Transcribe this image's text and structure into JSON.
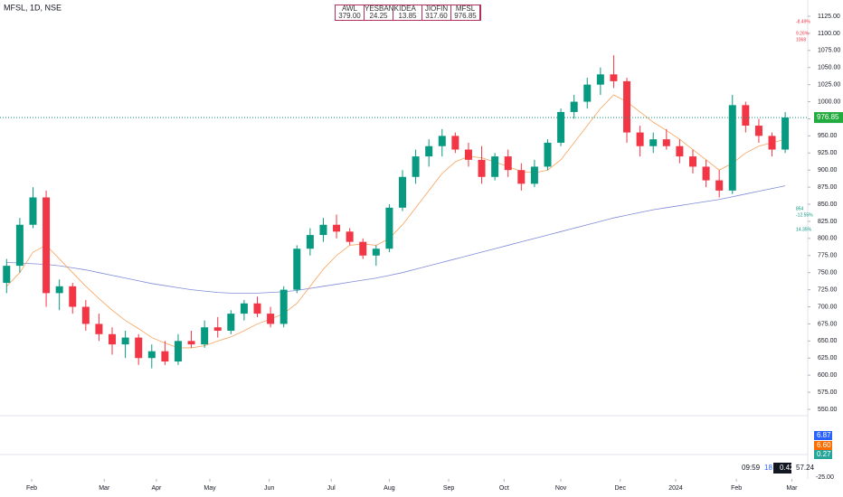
{
  "chart_data": {
    "type": "candlestick",
    "title": "MFSL, 1D, NSE",
    "watchlist": {
      "symbols": [
        "AWL",
        "YESBANK",
        "IDEA",
        "JIOFIN",
        "MFSL"
      ],
      "prices": [
        "379.00",
        "24.25",
        "13.85",
        "317.60",
        "976.85"
      ]
    },
    "x": [
      0.5,
      1.5,
      2.5,
      3.5,
      4.5,
      5.5,
      6.5,
      7.5,
      8.5,
      9.5,
      10.5,
      11.5,
      12.5,
      13.5,
      14.5,
      15.5,
      16.5,
      17.5,
      18.5,
      19.5,
      20.5,
      21.5,
      22.5,
      23.5,
      24.5,
      25.5,
      26.5,
      27.5,
      28.5,
      29.5,
      30.5,
      31.5,
      32.5,
      33.5,
      34.5,
      35.5,
      36.5,
      37.5,
      38.5,
      39.5,
      40.5,
      41.5,
      42.5,
      43.5,
      44.5,
      45.5,
      46.5,
      47.5,
      48.5,
      49.5,
      50.5,
      51.5,
      52.5,
      53.5,
      54.5,
      55.5,
      56.5,
      57.5,
      58.5,
      59.5
    ],
    "ohlc": [
      [
        735,
        770,
        720,
        760
      ],
      [
        760,
        830,
        750,
        820
      ],
      [
        820,
        875,
        815,
        860
      ],
      [
        860,
        870,
        700,
        720
      ],
      [
        720,
        740,
        695,
        730
      ],
      [
        730,
        735,
        690,
        700
      ],
      [
        700,
        710,
        665,
        675
      ],
      [
        675,
        690,
        650,
        660
      ],
      [
        660,
        670,
        630,
        645
      ],
      [
        645,
        665,
        625,
        655
      ],
      [
        655,
        660,
        615,
        625
      ],
      [
        625,
        645,
        610,
        635
      ],
      [
        635,
        650,
        615,
        620
      ],
      [
        620,
        660,
        615,
        650
      ],
      [
        650,
        665,
        640,
        645
      ],
      [
        645,
        680,
        640,
        670
      ],
      [
        670,
        685,
        655,
        665
      ],
      [
        665,
        695,
        660,
        690
      ],
      [
        690,
        710,
        680,
        705
      ],
      [
        705,
        715,
        685,
        690
      ],
      [
        690,
        700,
        670,
        675
      ],
      [
        675,
        730,
        670,
        725
      ],
      [
        725,
        790,
        720,
        785
      ],
      [
        785,
        815,
        775,
        805
      ],
      [
        805,
        830,
        795,
        820
      ],
      [
        820,
        835,
        800,
        810
      ],
      [
        810,
        815,
        790,
        795
      ],
      [
        795,
        800,
        770,
        775
      ],
      [
        775,
        790,
        760,
        785
      ],
      [
        785,
        850,
        780,
        845
      ],
      [
        845,
        900,
        840,
        890
      ],
      [
        890,
        930,
        880,
        920
      ],
      [
        920,
        945,
        905,
        935
      ],
      [
        935,
        960,
        920,
        950
      ],
      [
        950,
        955,
        925,
        930
      ],
      [
        930,
        940,
        905,
        915
      ],
      [
        915,
        935,
        880,
        890
      ],
      [
        890,
        925,
        885,
        920
      ],
      [
        920,
        930,
        890,
        900
      ],
      [
        900,
        910,
        870,
        880
      ],
      [
        880,
        915,
        875,
        905
      ],
      [
        905,
        945,
        900,
        940
      ],
      [
        940,
        990,
        935,
        985
      ],
      [
        985,
        1010,
        975,
        1000
      ],
      [
        1000,
        1035,
        990,
        1025
      ],
      [
        1025,
        1050,
        1010,
        1040
      ],
      [
        1040,
        1068,
        1020,
        1030
      ],
      [
        1030,
        1035,
        940,
        955
      ],
      [
        955,
        965,
        920,
        935
      ],
      [
        935,
        955,
        925,
        945
      ],
      [
        945,
        960,
        930,
        935
      ],
      [
        935,
        945,
        910,
        920
      ],
      [
        920,
        930,
        895,
        905
      ],
      [
        905,
        915,
        875,
        885
      ],
      [
        885,
        900,
        860,
        870
      ],
      [
        870,
        1010,
        865,
        995
      ],
      [
        995,
        1000,
        955,
        965
      ],
      [
        965,
        975,
        940,
        950
      ],
      [
        950,
        955,
        920,
        930
      ],
      [
        930,
        985,
        925,
        976.85
      ]
    ],
    "up_color": "#089981",
    "down_color": "#f23645",
    "lines": [
      {
        "color": "#7f8bd8",
        "values": [
          765,
          764,
          763,
          762,
          760,
          757,
          754,
          750,
          746,
          742,
          738,
          734,
          731,
          728,
          725,
          723,
          721,
          720,
          720,
          720,
          721,
          722,
          724,
          727,
          730,
          733,
          736,
          739,
          742,
          746,
          750,
          755,
          760,
          765,
          770,
          775,
          780,
          785,
          790,
          795,
          800,
          805,
          810,
          815,
          820,
          825,
          830,
          834,
          838,
          842,
          845,
          848,
          851,
          854,
          857,
          861,
          865,
          869,
          873,
          877
        ]
      },
      {
        "color": "#f7a35c",
        "values": [
          730,
          750,
          780,
          790,
          770,
          750,
          730,
          712,
          695,
          680,
          668,
          655,
          647,
          640,
          640,
          643,
          650,
          656,
          665,
          675,
          682,
          690,
          705,
          730,
          755,
          775,
          790,
          792,
          790,
          800,
          820,
          845,
          870,
          895,
          912,
          920,
          918,
          912,
          905,
          898,
          896,
          900,
          915,
          940,
          965,
          990,
          1010,
          1000,
          985,
          970,
          958,
          945,
          930,
          915,
          900,
          910,
          925,
          935,
          940,
          945
        ]
      }
    ],
    "xlim": [
      0,
      61
    ],
    "ylim": [
      550,
      1125
    ],
    "xticks": [
      {
        "value": 2.4,
        "label": "Feb"
      },
      {
        "value": 7.9,
        "label": "Mar"
      },
      {
        "value": 11.85,
        "label": "Apr"
      },
      {
        "value": 15.9,
        "label": "May"
      },
      {
        "value": 20.4,
        "label": "Jun"
      },
      {
        "value": 25.1,
        "label": "Jul"
      },
      {
        "value": 29.5,
        "label": "Aug"
      },
      {
        "value": 34,
        "label": "Sep"
      },
      {
        "value": 38.2,
        "label": "Oct"
      },
      {
        "value": 42.5,
        "label": "Nov"
      },
      {
        "value": 47,
        "label": "Dec"
      },
      {
        "value": 51.2,
        "label": "2024"
      },
      {
        "value": 55.8,
        "label": "Feb"
      },
      {
        "value": 60,
        "label": "Mar"
      }
    ],
    "yticks": [
      {
        "value": 550,
        "label": "550.00"
      },
      {
        "value": 575,
        "label": "575.00"
      },
      {
        "value": 600,
        "label": "600.00"
      },
      {
        "value": 625,
        "label": "625.00"
      },
      {
        "value": 650,
        "label": "650.00"
      },
      {
        "value": 675,
        "label": "675.00"
      },
      {
        "value": 700,
        "label": "700.00"
      },
      {
        "value": 725,
        "label": "725.00"
      },
      {
        "value": 750,
        "label": "750.00"
      },
      {
        "value": 775,
        "label": "775.00"
      },
      {
        "value": 800,
        "label": "800.00"
      },
      {
        "value": 825,
        "label": "825.00"
      },
      {
        "value": 850,
        "label": "850.00"
      },
      {
        "value": 875,
        "label": "875.00"
      },
      {
        "value": 900,
        "label": "900.00"
      },
      {
        "value": 925,
        "label": "925.00"
      },
      {
        "value": 950,
        "label": "950.00"
      },
      {
        "value": 975,
        "label": "975.00"
      },
      {
        "value": 1000,
        "label": "1000.00"
      },
      {
        "value": 1025,
        "label": "1025.00"
      },
      {
        "value": 1050,
        "label": "1050.00"
      },
      {
        "value": 1075,
        "label": "1075.00"
      },
      {
        "value": 1100,
        "label": "1100.00"
      },
      {
        "value": 1125,
        "label": "1125.00"
      }
    ],
    "last_price": {
      "value": 976.85,
      "label": "976.85"
    },
    "annotations": [
      "-8.49%",
      "9.26%",
      "1068",
      "854",
      "-12.55%",
      "14.35%"
    ],
    "macd_labels": [
      "6.87",
      "6.60",
      "0.27"
    ],
    "macd_tick": "-25.00",
    "status": [
      "09:59",
      "18",
      "0.42",
      "57.24"
    ]
  }
}
